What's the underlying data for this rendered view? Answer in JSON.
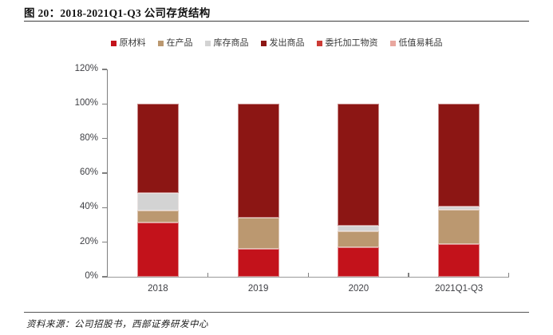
{
  "page": {
    "title": "图 20：2018-2021Q1-Q3 公司存货结构",
    "source": "资料来源：公司招股书，西部证券研发中心"
  },
  "chart_data": {
    "type": "bar",
    "stacked": true,
    "title": "图 20：2018-2021Q1-Q3 公司存货结构",
    "categories": [
      "2018",
      "2019",
      "2020",
      "2021Q1-Q3"
    ],
    "series": [
      {
        "name": "原材料",
        "color": "#C3121B",
        "values": [
          31.5,
          16,
          17,
          19
        ]
      },
      {
        "name": "在产品",
        "color": "#BB9870",
        "values": [
          7,
          18,
          9.5,
          20
        ]
      },
      {
        "name": "库存商品",
        "color": "#D3D3D3",
        "values": [
          10,
          0,
          3,
          1.5
        ]
      },
      {
        "name": "发出商品",
        "color": "#8C1614",
        "values": [
          51.5,
          66,
          70.5,
          59.5
        ]
      },
      {
        "name": "委托加工物资",
        "color": "#CC3B36",
        "values": [
          0,
          0,
          0,
          0
        ]
      },
      {
        "name": "低值易耗品",
        "color": "#E9A79F",
        "values": [
          0,
          0,
          0,
          0
        ]
      }
    ],
    "y_ticks": [
      "0%",
      "20%",
      "40%",
      "60%",
      "80%",
      "100%",
      "120%"
    ],
    "ylim": [
      0,
      120
    ],
    "grid": false,
    "legend_position": "top",
    "unit": "percent",
    "axis_color": "#7f7f7f",
    "tick_label_color": "#3f4045"
  }
}
